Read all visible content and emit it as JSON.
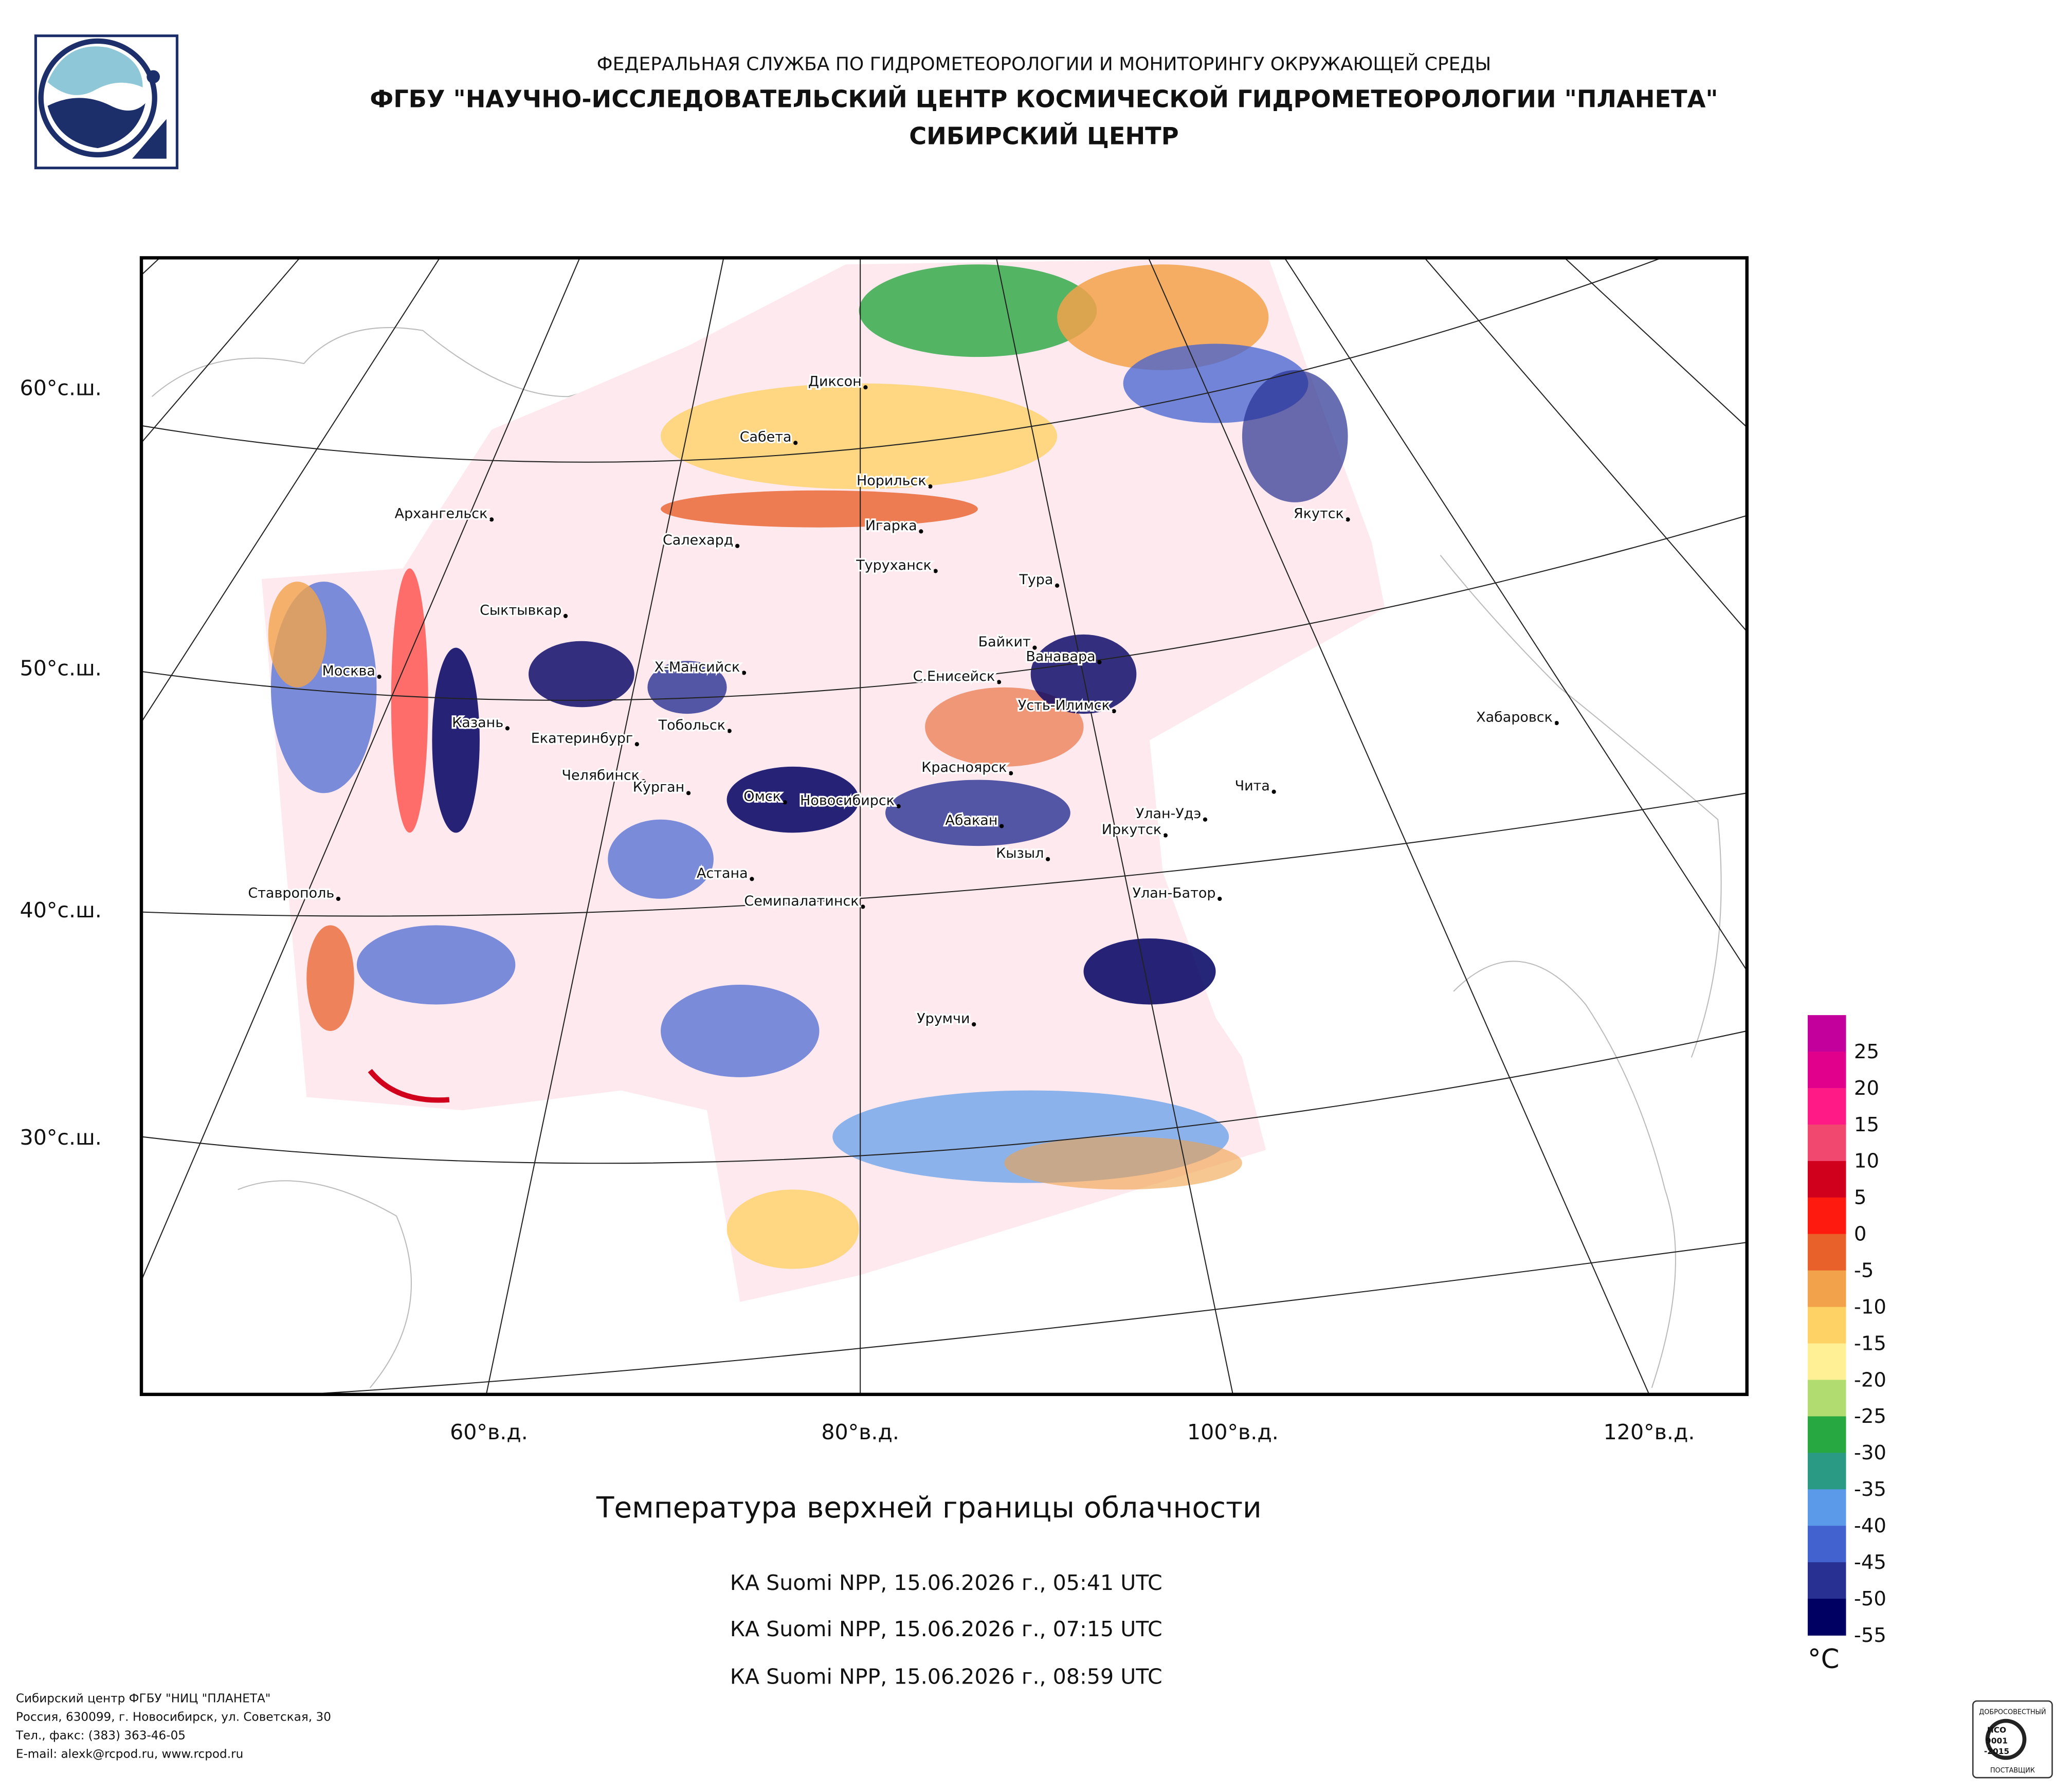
{
  "header": {
    "lines": [
      "ФЕДЕРАЛЬНАЯ СЛУЖБА ПО ГИДРОМЕТЕОРОЛОГИИ И МОНИТОРИНГУ ОКРУЖАЮЩЕЙ СРЕДЫ",
      "ФГБУ \"НАУЧНО-ИССЛЕДОВАТЕЛЬСКИЙ ЦЕНТР КОСМИЧЕСКОЙ ГИДРОМЕТЕОРОЛОГИИ \"ПЛАНЕТА\"",
      "СИБИРСКИЙ ЦЕНТР"
    ]
  },
  "map": {
    "lat_labels": [
      "60°с.ш.",
      "50°с.ш.",
      "40°с.ш.",
      "30°с.ш."
    ],
    "lon_labels": [
      "60°в.д.",
      "80°в.д.",
      "100°в.д.",
      "120°в.д."
    ],
    "cities": [
      "Диксон",
      "Сабета",
      "Норильск",
      "Архангельск",
      "Игарка",
      "Салехард",
      "Туруханск",
      "Тура",
      "Якутск",
      "Сыктывкар",
      "Байкит",
      "Ванавара",
      "Москва",
      "Х-Мансийск",
      "С.Енисейск",
      "Усть-Илимск",
      "Хабаровск",
      "Казань",
      "Тобольск",
      "Екатеринбург",
      "Красноярск",
      "Челябинск",
      "Чита",
      "Курган",
      "Омск",
      "Новосибирск",
      "Улан-Удэ",
      "Абакан",
      "Иркутск",
      "Кызыл",
      "Астана",
      "Ставрополь",
      "Семипалатинск",
      "Улан-Батор",
      "Урумчи"
    ]
  },
  "legend": {
    "ticks": [
      25,
      20,
      15,
      10,
      5,
      0,
      -5,
      -10,
      -15,
      -20,
      -25,
      -30,
      -35,
      -40,
      -45,
      -50,
      -55
    ],
    "colors": [
      "#c4009c",
      "#e0008c",
      "#ff1a86",
      "#f0486e",
      "#d0001c",
      "#ff1a10",
      "#e8602a",
      "#f2a24a",
      "#ffd266",
      "#fff096",
      "#b0dc70",
      "#28a840",
      "#2a9a84",
      "#5a9ae8",
      "#4262d0",
      "#283092",
      "#000062"
    ],
    "unit": "°C"
  },
  "caption": {
    "title": "Температура верхней границы облачности",
    "passes": [
      "КА Suomi NPP, 15.06.2026 г., 05:41 UTC",
      "КА Suomi NPP, 15.06.2026 г., 07:15 UTC",
      "КА Suomi NPP, 15.06.2026 г., 08:59 UTC"
    ]
  },
  "footer": {
    "lines": [
      "Сибирский центр ФГБУ \"НИЦ \"ПЛАНЕТА\"",
      "Россия, 630099, г. Новосибирск, ул. Советская, 30",
      "Тел., факс: (383) 363-46-05",
      "E-mail: alexk@rcpod.ru, www.rcpod.ru"
    ]
  },
  "cert": {
    "top": "ДОБРОСОВЕСТНЫЙ",
    "lines": [
      "ИСО",
      "9001",
      "-2015"
    ],
    "bottom": "ПОСТАВЩИК"
  }
}
